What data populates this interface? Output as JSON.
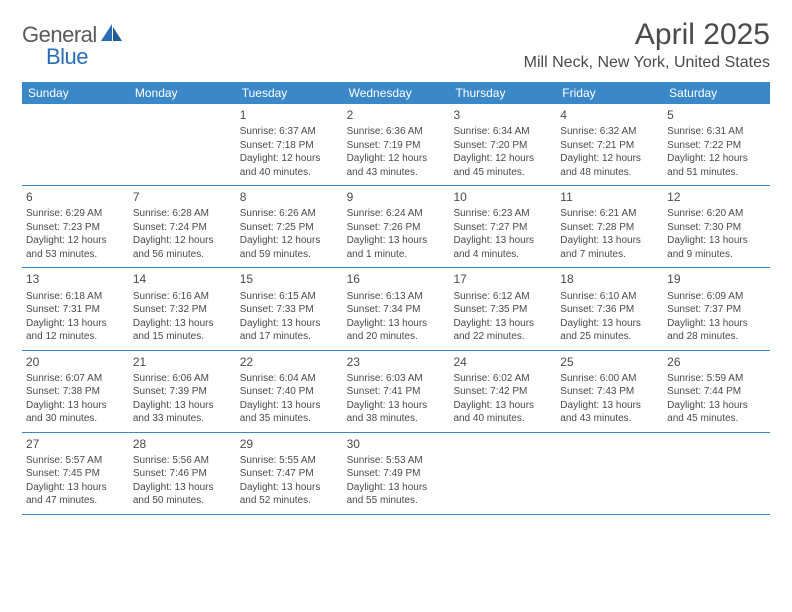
{
  "logo": {
    "text1": "General",
    "text2": "Blue"
  },
  "title": "April 2025",
  "location": "Mill Neck, New York, United States",
  "colors": {
    "header_bg": "#3b88c9",
    "header_text": "#ffffff",
    "border": "#3b88c9",
    "text": "#4a4a4a",
    "logo_gray": "#5a5a5a",
    "logo_blue": "#2a6db3"
  },
  "weekdays": [
    "Sunday",
    "Monday",
    "Tuesday",
    "Wednesday",
    "Thursday",
    "Friday",
    "Saturday"
  ],
  "weeks": [
    [
      {
        "day": "",
        "lines": []
      },
      {
        "day": "",
        "lines": []
      },
      {
        "day": "1",
        "lines": [
          "Sunrise: 6:37 AM",
          "Sunset: 7:18 PM",
          "Daylight: 12 hours",
          "and 40 minutes."
        ]
      },
      {
        "day": "2",
        "lines": [
          "Sunrise: 6:36 AM",
          "Sunset: 7:19 PM",
          "Daylight: 12 hours",
          "and 43 minutes."
        ]
      },
      {
        "day": "3",
        "lines": [
          "Sunrise: 6:34 AM",
          "Sunset: 7:20 PM",
          "Daylight: 12 hours",
          "and 45 minutes."
        ]
      },
      {
        "day": "4",
        "lines": [
          "Sunrise: 6:32 AM",
          "Sunset: 7:21 PM",
          "Daylight: 12 hours",
          "and 48 minutes."
        ]
      },
      {
        "day": "5",
        "lines": [
          "Sunrise: 6:31 AM",
          "Sunset: 7:22 PM",
          "Daylight: 12 hours",
          "and 51 minutes."
        ]
      }
    ],
    [
      {
        "day": "6",
        "lines": [
          "Sunrise: 6:29 AM",
          "Sunset: 7:23 PM",
          "Daylight: 12 hours",
          "and 53 minutes."
        ]
      },
      {
        "day": "7",
        "lines": [
          "Sunrise: 6:28 AM",
          "Sunset: 7:24 PM",
          "Daylight: 12 hours",
          "and 56 minutes."
        ]
      },
      {
        "day": "8",
        "lines": [
          "Sunrise: 6:26 AM",
          "Sunset: 7:25 PM",
          "Daylight: 12 hours",
          "and 59 minutes."
        ]
      },
      {
        "day": "9",
        "lines": [
          "Sunrise: 6:24 AM",
          "Sunset: 7:26 PM",
          "Daylight: 13 hours",
          "and 1 minute."
        ]
      },
      {
        "day": "10",
        "lines": [
          "Sunrise: 6:23 AM",
          "Sunset: 7:27 PM",
          "Daylight: 13 hours",
          "and 4 minutes."
        ]
      },
      {
        "day": "11",
        "lines": [
          "Sunrise: 6:21 AM",
          "Sunset: 7:28 PM",
          "Daylight: 13 hours",
          "and 7 minutes."
        ]
      },
      {
        "day": "12",
        "lines": [
          "Sunrise: 6:20 AM",
          "Sunset: 7:30 PM",
          "Daylight: 13 hours",
          "and 9 minutes."
        ]
      }
    ],
    [
      {
        "day": "13",
        "lines": [
          "Sunrise: 6:18 AM",
          "Sunset: 7:31 PM",
          "Daylight: 13 hours",
          "and 12 minutes."
        ]
      },
      {
        "day": "14",
        "lines": [
          "Sunrise: 6:16 AM",
          "Sunset: 7:32 PM",
          "Daylight: 13 hours",
          "and 15 minutes."
        ]
      },
      {
        "day": "15",
        "lines": [
          "Sunrise: 6:15 AM",
          "Sunset: 7:33 PM",
          "Daylight: 13 hours",
          "and 17 minutes."
        ]
      },
      {
        "day": "16",
        "lines": [
          "Sunrise: 6:13 AM",
          "Sunset: 7:34 PM",
          "Daylight: 13 hours",
          "and 20 minutes."
        ]
      },
      {
        "day": "17",
        "lines": [
          "Sunrise: 6:12 AM",
          "Sunset: 7:35 PM",
          "Daylight: 13 hours",
          "and 22 minutes."
        ]
      },
      {
        "day": "18",
        "lines": [
          "Sunrise: 6:10 AM",
          "Sunset: 7:36 PM",
          "Daylight: 13 hours",
          "and 25 minutes."
        ]
      },
      {
        "day": "19",
        "lines": [
          "Sunrise: 6:09 AM",
          "Sunset: 7:37 PM",
          "Daylight: 13 hours",
          "and 28 minutes."
        ]
      }
    ],
    [
      {
        "day": "20",
        "lines": [
          "Sunrise: 6:07 AM",
          "Sunset: 7:38 PM",
          "Daylight: 13 hours",
          "and 30 minutes."
        ]
      },
      {
        "day": "21",
        "lines": [
          "Sunrise: 6:06 AM",
          "Sunset: 7:39 PM",
          "Daylight: 13 hours",
          "and 33 minutes."
        ]
      },
      {
        "day": "22",
        "lines": [
          "Sunrise: 6:04 AM",
          "Sunset: 7:40 PM",
          "Daylight: 13 hours",
          "and 35 minutes."
        ]
      },
      {
        "day": "23",
        "lines": [
          "Sunrise: 6:03 AM",
          "Sunset: 7:41 PM",
          "Daylight: 13 hours",
          "and 38 minutes."
        ]
      },
      {
        "day": "24",
        "lines": [
          "Sunrise: 6:02 AM",
          "Sunset: 7:42 PM",
          "Daylight: 13 hours",
          "and 40 minutes."
        ]
      },
      {
        "day": "25",
        "lines": [
          "Sunrise: 6:00 AM",
          "Sunset: 7:43 PM",
          "Daylight: 13 hours",
          "and 43 minutes."
        ]
      },
      {
        "day": "26",
        "lines": [
          "Sunrise: 5:59 AM",
          "Sunset: 7:44 PM",
          "Daylight: 13 hours",
          "and 45 minutes."
        ]
      }
    ],
    [
      {
        "day": "27",
        "lines": [
          "Sunrise: 5:57 AM",
          "Sunset: 7:45 PM",
          "Daylight: 13 hours",
          "and 47 minutes."
        ]
      },
      {
        "day": "28",
        "lines": [
          "Sunrise: 5:56 AM",
          "Sunset: 7:46 PM",
          "Daylight: 13 hours",
          "and 50 minutes."
        ]
      },
      {
        "day": "29",
        "lines": [
          "Sunrise: 5:55 AM",
          "Sunset: 7:47 PM",
          "Daylight: 13 hours",
          "and 52 minutes."
        ]
      },
      {
        "day": "30",
        "lines": [
          "Sunrise: 5:53 AM",
          "Sunset: 7:49 PM",
          "Daylight: 13 hours",
          "and 55 minutes."
        ]
      },
      {
        "day": "",
        "lines": []
      },
      {
        "day": "",
        "lines": []
      },
      {
        "day": "",
        "lines": []
      }
    ]
  ]
}
